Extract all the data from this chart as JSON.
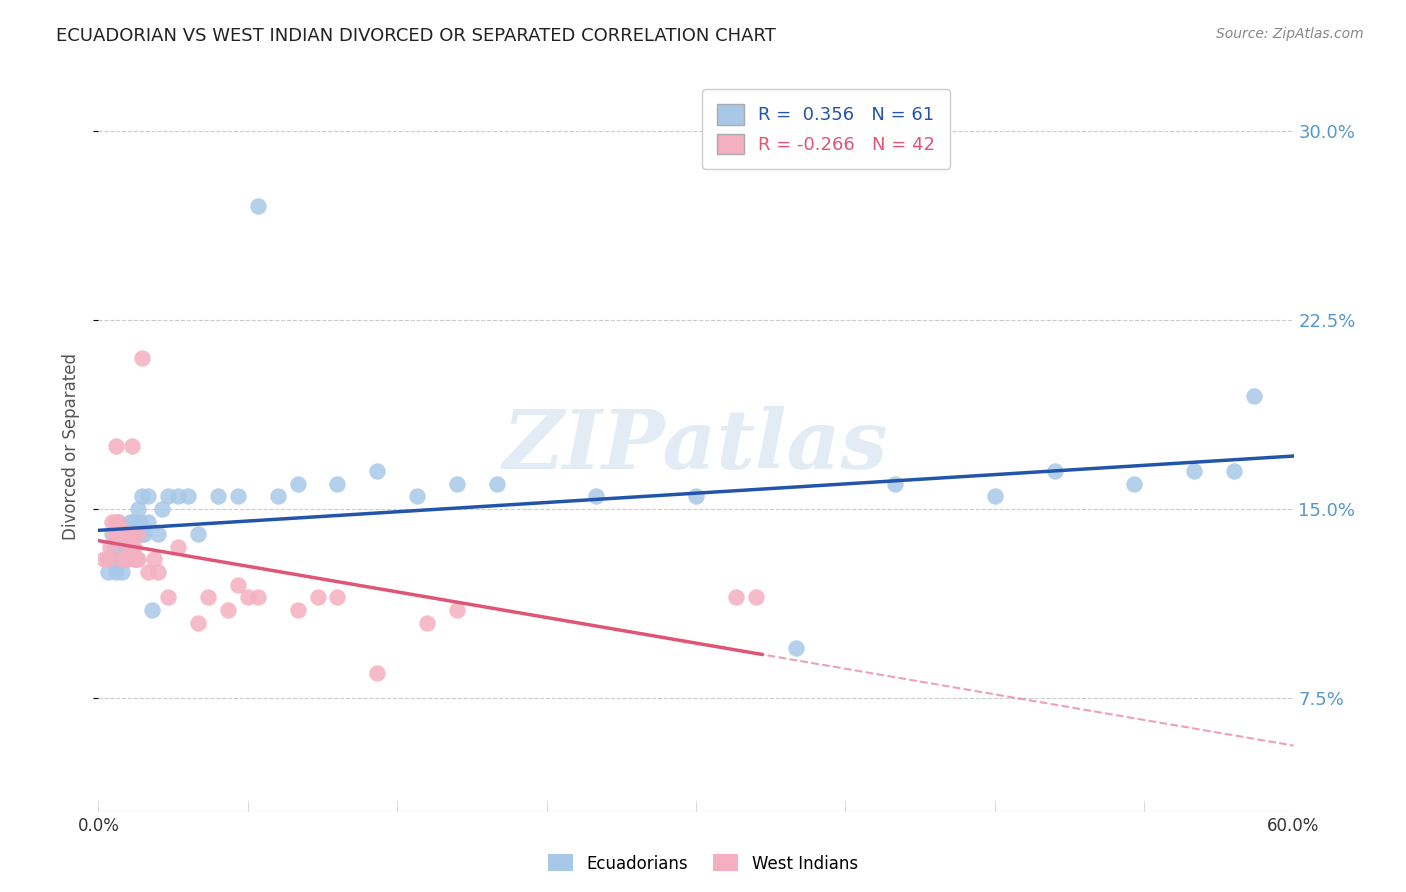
{
  "title": "ECUADORIAN VS WEST INDIAN DIVORCED OR SEPARATED CORRELATION CHART",
  "source": "Source: ZipAtlas.com",
  "xlabel_ticks_show": [
    "0.0%",
    "60.0%"
  ],
  "xlabel_ticks_pos": [
    0.0,
    0.6
  ],
  "xlabel_minor_ticks": [
    0.075,
    0.15,
    0.225,
    0.3,
    0.375,
    0.45,
    0.525
  ],
  "ylabel_ticks": [
    "7.5%",
    "15.0%",
    "22.5%",
    "30.0%"
  ],
  "ylabel_vals": [
    0.075,
    0.15,
    0.225,
    0.3
  ],
  "ylabel_label": "Divorced or Separated",
  "xmin": 0.0,
  "xmax": 0.6,
  "ymin": 0.03,
  "ymax": 0.32,
  "blue_R": 0.356,
  "blue_N": 61,
  "pink_R": -0.266,
  "pink_N": 42,
  "blue_color": "#a8c8e8",
  "pink_color": "#f4b0c0",
  "blue_line_color": "#2255aa",
  "pink_line_color": "#e05575",
  "blue_label": "Ecuadorians",
  "pink_label": "West Indians",
  "watermark": "ZIPatlas",
  "blue_points_x": [
    0.005,
    0.005,
    0.007,
    0.008,
    0.008,
    0.009,
    0.009,
    0.01,
    0.01,
    0.01,
    0.012,
    0.012,
    0.013,
    0.013,
    0.014,
    0.014,
    0.015,
    0.015,
    0.015,
    0.016,
    0.016,
    0.017,
    0.017,
    0.018,
    0.018,
    0.019,
    0.02,
    0.02,
    0.021,
    0.022,
    0.022,
    0.023,
    0.025,
    0.025,
    0.027,
    0.03,
    0.032,
    0.035,
    0.04,
    0.045,
    0.05,
    0.06,
    0.07,
    0.08,
    0.09,
    0.1,
    0.12,
    0.14,
    0.16,
    0.18,
    0.2,
    0.25,
    0.3,
    0.35,
    0.4,
    0.45,
    0.48,
    0.52,
    0.55,
    0.57,
    0.58
  ],
  "blue_points_y": [
    0.13,
    0.125,
    0.14,
    0.135,
    0.13,
    0.125,
    0.14,
    0.145,
    0.135,
    0.13,
    0.13,
    0.125,
    0.135,
    0.13,
    0.135,
    0.14,
    0.13,
    0.14,
    0.135,
    0.145,
    0.14,
    0.135,
    0.14,
    0.145,
    0.14,
    0.13,
    0.14,
    0.15,
    0.145,
    0.14,
    0.155,
    0.14,
    0.145,
    0.155,
    0.11,
    0.14,
    0.15,
    0.155,
    0.155,
    0.155,
    0.14,
    0.155,
    0.155,
    0.27,
    0.155,
    0.16,
    0.16,
    0.165,
    0.155,
    0.16,
    0.16,
    0.155,
    0.155,
    0.095,
    0.16,
    0.155,
    0.165,
    0.16,
    0.165,
    0.165,
    0.195
  ],
  "pink_points_x": [
    0.003,
    0.005,
    0.006,
    0.007,
    0.008,
    0.009,
    0.009,
    0.01,
    0.01,
    0.012,
    0.013,
    0.013,
    0.014,
    0.015,
    0.015,
    0.016,
    0.017,
    0.018,
    0.018,
    0.019,
    0.02,
    0.02,
    0.022,
    0.025,
    0.028,
    0.03,
    0.035,
    0.04,
    0.05,
    0.055,
    0.065,
    0.07,
    0.075,
    0.08,
    0.1,
    0.11,
    0.12,
    0.14,
    0.165,
    0.18,
    0.32,
    0.33
  ],
  "pink_points_y": [
    0.13,
    0.13,
    0.135,
    0.145,
    0.14,
    0.145,
    0.175,
    0.14,
    0.145,
    0.13,
    0.13,
    0.14,
    0.13,
    0.135,
    0.14,
    0.14,
    0.175,
    0.13,
    0.135,
    0.13,
    0.13,
    0.14,
    0.21,
    0.125,
    0.13,
    0.125,
    0.115,
    0.135,
    0.105,
    0.115,
    0.11,
    0.12,
    0.115,
    0.115,
    0.11,
    0.115,
    0.115,
    0.085,
    0.105,
    0.11,
    0.115,
    0.115
  ]
}
